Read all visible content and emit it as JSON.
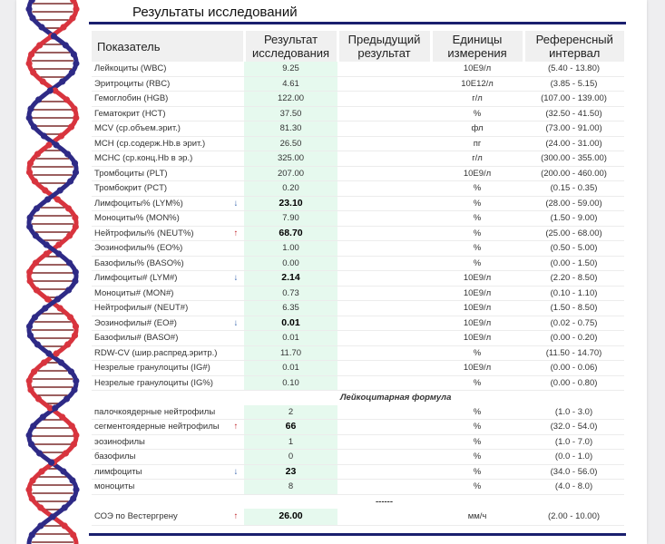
{
  "page": {
    "title": "Результаты исследований",
    "colors": {
      "accent_rule": "#1a1f6e",
      "result_bg": "#e6f9ee",
      "flag_up": "#c0252b",
      "flag_down": "#2a5ca8"
    }
  },
  "table": {
    "headers": {
      "name": "Показатель",
      "result": "Результат исследования",
      "previous": "Предыдущий результат",
      "units": "Единицы измерения",
      "reference": "Референсный интервал"
    },
    "rows": [
      {
        "name": "Лейкоциты (WBC)",
        "flag": "",
        "result": "9.25",
        "bold": false,
        "previous": "",
        "unit": "10E9/л",
        "ref": "(5.40 - 13.80)"
      },
      {
        "name": "Эритроциты (RBC)",
        "flag": "",
        "result": "4.61",
        "bold": false,
        "previous": "",
        "unit": "10E12/л",
        "ref": "(3.85 - 5.15)"
      },
      {
        "name": "Гемоглобин (HGB)",
        "flag": "",
        "result": "122.00",
        "bold": false,
        "previous": "",
        "unit": "г/л",
        "ref": "(107.00 - 139.00)"
      },
      {
        "name": "Гематокрит (HCT)",
        "flag": "",
        "result": "37.50",
        "bold": false,
        "previous": "",
        "unit": "%",
        "ref": "(32.50 - 41.50)"
      },
      {
        "name": "MCV (ср.объем.эрит.)",
        "flag": "",
        "result": "81.30",
        "bold": false,
        "previous": "",
        "unit": "фл",
        "ref": "(73.00 - 91.00)"
      },
      {
        "name": "MCH (ср.содерж.Hb.в эрит.)",
        "flag": "",
        "result": "26.50",
        "bold": false,
        "previous": "",
        "unit": "пг",
        "ref": "(24.00 - 31.00)"
      },
      {
        "name": "MCHC (ср.конц.Hb в эр.)",
        "flag": "",
        "result": "325.00",
        "bold": false,
        "previous": "",
        "unit": "г/л",
        "ref": "(300.00 - 355.00)"
      },
      {
        "name": "Тромбоциты (PLT)",
        "flag": "",
        "result": "207.00",
        "bold": false,
        "previous": "",
        "unit": "10E9/л",
        "ref": "(200.00 - 460.00)"
      },
      {
        "name": "Тромбокрит (PCT)",
        "flag": "",
        "result": "0.20",
        "bold": false,
        "previous": "",
        "unit": "%",
        "ref": "(0.15 - 0.35)"
      },
      {
        "name": "Лимфоциты% (LYM%)",
        "flag": "↓",
        "result": "23.10",
        "bold": true,
        "previous": "",
        "unit": "%",
        "ref": "(28.00 - 59.00)"
      },
      {
        "name": "Моноциты% (MON%)",
        "flag": "",
        "result": "7.90",
        "bold": false,
        "previous": "",
        "unit": "%",
        "ref": "(1.50 - 9.00)"
      },
      {
        "name": "Нейтрофилы% (NEUT%)",
        "flag": "↑",
        "result": "68.70",
        "bold": true,
        "previous": "",
        "unit": "%",
        "ref": "(25.00 - 68.00)"
      },
      {
        "name": "Эозинофилы% (EO%)",
        "flag": "",
        "result": "1.00",
        "bold": false,
        "previous": "",
        "unit": "%",
        "ref": "(0.50 - 5.00)"
      },
      {
        "name": "Базофилы% (BASO%)",
        "flag": "",
        "result": "0.00",
        "bold": false,
        "previous": "",
        "unit": "%",
        "ref": "(0.00 - 1.50)"
      },
      {
        "name": "Лимфоциты# (LYM#)",
        "flag": "↓",
        "result": "2.14",
        "bold": true,
        "previous": "",
        "unit": "10E9/л",
        "ref": "(2.20 - 8.50)"
      },
      {
        "name": "Моноциты# (MON#)",
        "flag": "",
        "result": "0.73",
        "bold": false,
        "previous": "",
        "unit": "10E9/л",
        "ref": "(0.10 - 1.10)"
      },
      {
        "name": "Нейтрофилы# (NEUT#)",
        "flag": "",
        "result": "6.35",
        "bold": false,
        "previous": "",
        "unit": "10E9/л",
        "ref": "(1.50 - 8.50)"
      },
      {
        "name": "Эозинофилы# (EO#)",
        "flag": "↓",
        "result": "0.01",
        "bold": true,
        "previous": "",
        "unit": "10E9/л",
        "ref": "(0.02 - 0.75)"
      },
      {
        "name": "Базофилы# (BASO#)",
        "flag": "",
        "result": "0.01",
        "bold": false,
        "previous": "",
        "unit": "10E9/л",
        "ref": "(0.00 - 0.20)"
      },
      {
        "name": "RDW-CV (шир.распред.эритр.)",
        "flag": "",
        "result": "11.70",
        "bold": false,
        "previous": "",
        "unit": "%",
        "ref": "(11.50 - 14.70)"
      },
      {
        "name": "Незрелые гранулоциты (IG#)",
        "flag": "",
        "result": "0.01",
        "bold": false,
        "previous": "",
        "unit": "10E9/л",
        "ref": "(0.00 - 0.06)"
      },
      {
        "name": "Незрелые гранулоциты (IG%)",
        "flag": "",
        "result": "0.10",
        "bold": false,
        "previous": "",
        "unit": "%",
        "ref": "(0.00 - 0.80)"
      }
    ],
    "formula_section": {
      "title": "Лейкоцитарная формула",
      "rows": [
        {
          "name": "палочкоядерные нейтрофилы",
          "flag": "",
          "result": "2",
          "bold": false,
          "previous": "",
          "unit": "%",
          "ref": "(1.0 - 3.0)"
        },
        {
          "name": "сегментоядерные нейтрофилы",
          "flag": "↑",
          "result": "66",
          "bold": true,
          "previous": "",
          "unit": "%",
          "ref": "(32.0 - 54.0)"
        },
        {
          "name": "эозинофилы",
          "flag": "",
          "result": "1",
          "bold": false,
          "previous": "",
          "unit": "%",
          "ref": "(1.0 - 7.0)"
        },
        {
          "name": "базофилы",
          "flag": "",
          "result": "0",
          "bold": false,
          "previous": "",
          "unit": "%",
          "ref": "(0.0 - 1.0)"
        },
        {
          "name": "лимфоциты",
          "flag": "↓",
          "result": "23",
          "bold": true,
          "previous": "",
          "unit": "%",
          "ref": "(34.0 - 56.0)"
        },
        {
          "name": "моноциты",
          "flag": "",
          "result": "8",
          "bold": false,
          "previous": "",
          "unit": "%",
          "ref": "(4.0 - 8.0)"
        }
      ]
    },
    "separator": "------",
    "esr_row": {
      "name": "СОЭ по Вестергрену",
      "flag": "↑",
      "result": "26.00",
      "bold": true,
      "previous": "",
      "unit": "мм/ч",
      "ref": "(2.00 - 10.00)"
    }
  }
}
